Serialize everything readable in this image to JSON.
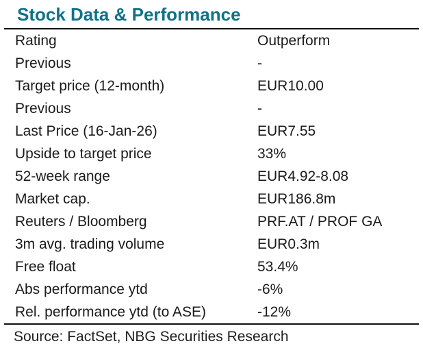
{
  "title": "Stock Data & Performance",
  "colors": {
    "accent_teal": "#0f7287",
    "text": "#1a1a1a",
    "rule": "#111111",
    "background": "#ffffff"
  },
  "table": {
    "rows": [
      {
        "label": "Rating",
        "value": "Outperform"
      },
      {
        "label": "Previous",
        "value": "-"
      },
      {
        "label": "Target price (12-month)",
        "value": "EUR10.00"
      },
      {
        "label": "Previous",
        "value": "-"
      },
      {
        "label": "Last Price (16-Jan-26)",
        "value": "EUR7.55"
      },
      {
        "label": "Upside to target price",
        "value": "33%"
      },
      {
        "label": "52-week range",
        "value": "EUR4.92-8.08"
      },
      {
        "label": "Market cap.",
        "value": "EUR186.8m"
      },
      {
        "label": "Reuters / Bloomberg",
        "value": "PRF.AT / PROF GA"
      },
      {
        "label": "3m avg. trading volume",
        "value": "EUR0.3m"
      },
      {
        "label": "Free float",
        "value": "53.4%"
      },
      {
        "label": "Abs performance ytd",
        "value": "-6%"
      },
      {
        "label": "Rel. performance ytd (to ASE)",
        "value": "-12%"
      }
    ]
  },
  "footer": {
    "source": "Source: FactSet, NBG Securities Research"
  }
}
